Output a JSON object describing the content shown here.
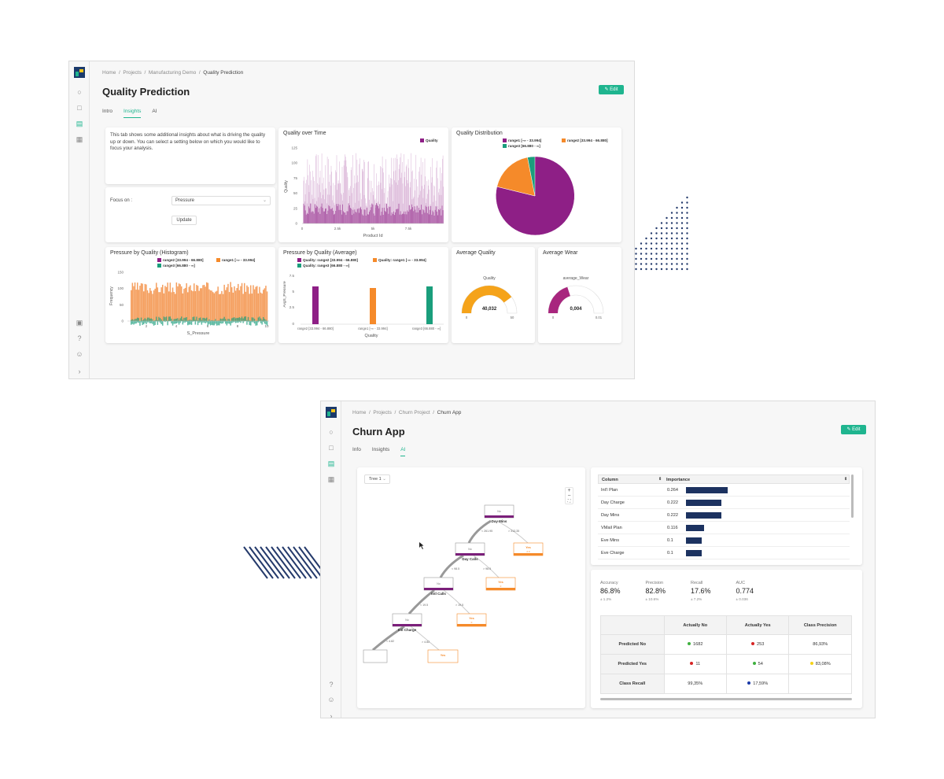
{
  "win1": {
    "breadcrumb": [
      "Home",
      "Projects",
      "Manufacturing Demo",
      "Quality Prediction"
    ],
    "title": "Quality Prediction",
    "edit_label": "Edit",
    "tabs": [
      "Intro",
      "Insights",
      "AI"
    ],
    "active_tab": "Insights",
    "intro_text": "This tab shows some additional insights about what is driving the quality up or down. You can select a setting below on which you would like to focus your analysis.",
    "focus_label": "Focus on :",
    "focus_value": "Pressure",
    "update_label": "Update",
    "colors": {
      "purple": "#8e1f86",
      "orange": "#f58a2a",
      "teal": "#1a9e7c",
      "accent": "#1fb58f"
    },
    "quality_over_time": {
      "title": "Quality over Time",
      "legend": "Quality",
      "ylabel": "Quality",
      "xlabel": "Product Id",
      "yticks": [
        "125",
        "100",
        "75",
        "50",
        "25",
        "0"
      ],
      "xticks": [
        "0",
        "2.5k",
        "5k",
        "7.5k"
      ]
    },
    "quality_distribution": {
      "title": "Quality Distribution",
      "legend": [
        "range1 [-∞ - 33.994]",
        "range2 [33.994 - 66.880]",
        "range3 [66.880 - ∞]"
      ]
    },
    "histogram": {
      "title": "Pressure by Quality (Histogram)",
      "legend": [
        "range2 [33.994 - 66.880]",
        "range1 [-∞ - 33.994]",
        "range3 [66.880 - ∞]"
      ],
      "ylabel": "Frequency",
      "xlabel": "S_Pressure",
      "yticks": [
        "150",
        "100",
        "50",
        "0"
      ],
      "xticks": [
        "2",
        "4",
        "6",
        "8",
        "10"
      ]
    },
    "avg_chart": {
      "title": "Pressure by Quality (Average)",
      "legend": [
        "Quality: range2 [33.994 - 66.880]",
        "Quality: range1 [-∞ - 33.994]",
        "Quality: range3 [66.880 - ∞]"
      ],
      "ylabel": "AvgS_Pressure",
      "xlabel": "Quality",
      "yticks": [
        "7.5",
        "5",
        "2.5",
        "0"
      ],
      "categories": [
        "range2 [33.994 - 66.880]",
        "range1 [-∞ - 33.994]",
        "range3 [66.880 - ∞]"
      ]
    },
    "avg_quality": {
      "title": "Average Quality",
      "label": "Quality",
      "value": "40,032",
      "min": "0",
      "max": "50"
    },
    "avg_wear": {
      "title": "Average Wear",
      "label": "average_Wear",
      "value": "0,004",
      "min": "0",
      "max": "0.01"
    }
  },
  "win2": {
    "breadcrumb": [
      "Home",
      "Projects",
      "Churn Project",
      "Churn App"
    ],
    "title": "Churn App",
    "edit_label": "Edit",
    "tabs": [
      "Info",
      "Insights",
      "AI"
    ],
    "active_tab": "AI",
    "tree_select": "Tree 1",
    "zoom": {
      "plus": "+",
      "minus": "−",
      "fit": "⛶"
    },
    "tree_nodes": {
      "n1": {
        "top": "No",
        "label": "Day Mins"
      },
      "n2": {
        "top": "No",
        "label": "Day Calls"
      },
      "n3": {
        "top": "Yes",
        "sub": "2.0"
      },
      "n4": {
        "top": "No",
        "label": "Intl Calls"
      },
      "n5": {
        "top": "Yes",
        "sub": "0"
      },
      "n6": {
        "top": "No",
        "label": "Intl Charge"
      },
      "n7": {
        "top": "Yes",
        "sub": "0"
      },
      "n8": {
        "top": "Yes"
      }
    },
    "tree_edges": [
      "< 261.95",
      "> 313.35",
      "< 98.5",
      "> 98.5",
      "< 19.5",
      "> 19.5",
      "< 4.82",
      "> 4.82"
    ],
    "fi_headers": [
      "Column",
      "Importance"
    ],
    "fi_rows": [
      {
        "column": "Int'l Plan",
        "importance": "0.264",
        "v": 0.264
      },
      {
        "column": "Day Charge",
        "importance": "0.222",
        "v": 0.222
      },
      {
        "column": "Day Mins",
        "importance": "0.222",
        "v": 0.222
      },
      {
        "column": "VMail Plan",
        "importance": "0.116",
        "v": 0.116
      },
      {
        "column": "Eve Mins",
        "importance": "0.1",
        "v": 0.1
      },
      {
        "column": "Eve Charge",
        "importance": "0.1",
        "v": 0.1
      }
    ],
    "metrics": [
      {
        "label": "Accuracy",
        "value": "86.8%",
        "sub": "± 1.2%"
      },
      {
        "label": "Precision",
        "value": "82.8%",
        "sub": "± 10.6%"
      },
      {
        "label": "Recall",
        "value": "17.6%",
        "sub": "± 7.2%"
      },
      {
        "label": "AUC",
        "value": "0.774",
        "sub": "± 0.036"
      }
    ],
    "cm": {
      "headers": [
        "Actually No",
        "Actually Yes",
        "Class Precision"
      ],
      "row1_label": "Predicted No",
      "row2_label": "Predicted Yes",
      "row3_label": "Class Recall",
      "r1": [
        "1682",
        "253",
        "86,93%"
      ],
      "r2": [
        "11",
        "54",
        "83,08%"
      ],
      "r3": [
        "99,35%",
        "17,59%"
      ]
    },
    "bar_color": "#1c3260"
  }
}
